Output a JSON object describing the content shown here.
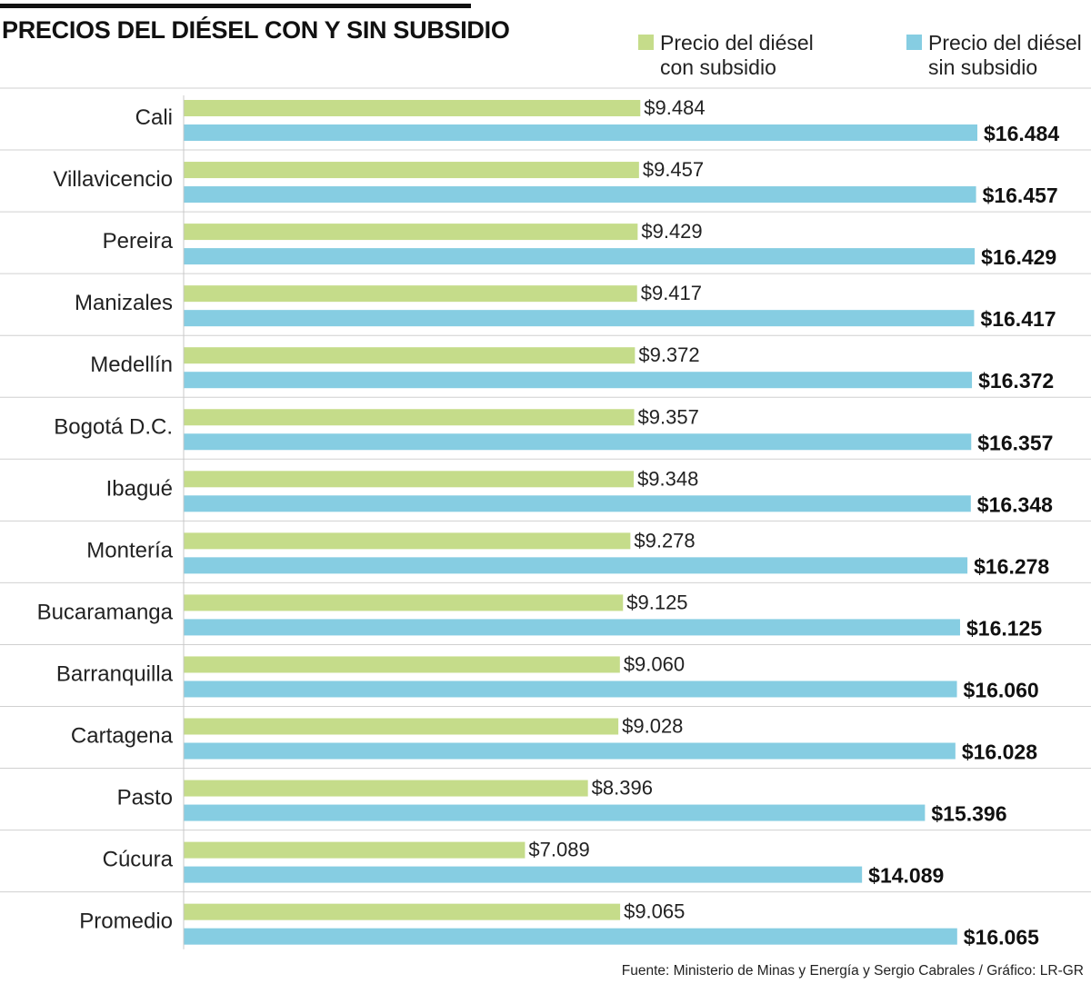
{
  "title": "PRECIOS DEL DIÉSEL CON Y SIN SUBSIDIO",
  "source": "Fuente: Ministerio de Minas y Energía y Sergio Cabrales / Gráfico: LR-GR",
  "colors": {
    "with_subsidy": "#c5dc8a",
    "without_subsidy": "#86cde2",
    "divider": "#d0d0d0"
  },
  "legend": {
    "with_subsidy_line1": "Precio del diésel",
    "with_subsidy_line2": "con subsidio",
    "without_subsidy_line1": "Precio del diésel",
    "without_subsidy_line2": "sin subsidio"
  },
  "chart_data": {
    "type": "bar",
    "orientation": "horizontal",
    "title": "PRECIOS DEL DIÉSEL CON Y SIN SUBSIDIO",
    "categories": [
      "Cali",
      "Villavicencio",
      "Pereira",
      "Manizales",
      "Medellín",
      "Bogotá D.C.",
      "Ibagué",
      "Montería",
      "Bucaramanga",
      "Barranquilla",
      "Cartagena",
      "Pasto",
      "Cúcura",
      "Promedio"
    ],
    "series": [
      {
        "name": "Precio del diésel con subsidio",
        "values": [
          9484,
          9457,
          9429,
          9417,
          9372,
          9357,
          9348,
          9278,
          9125,
          9060,
          9028,
          8396,
          7089,
          9065
        ],
        "labels": [
          "$9.484",
          "$9.457",
          "$9.429",
          "$9.417",
          "$9.372",
          "$9.357",
          "$9.348",
          "$9.278",
          "$9.125",
          "$9.060",
          "$9.028",
          "$8.396",
          "$7.089",
          "$9.065"
        ]
      },
      {
        "name": "Precio del diésel sin subsidio",
        "values": [
          16484,
          16457,
          16429,
          16417,
          16372,
          16357,
          16348,
          16278,
          16125,
          16060,
          16028,
          15396,
          14089,
          16065
        ],
        "labels": [
          "$16.484",
          "$16.457",
          "$16.429",
          "$16.417",
          "$16.372",
          "$16.357",
          "$16.348",
          "$16.278",
          "$16.125",
          "$16.060",
          "$16.028",
          "$15.396",
          "$14.089",
          "$16.065"
        ]
      }
    ],
    "xlim": [
      0,
      16484
    ],
    "xlabel": "",
    "ylabel": "",
    "grid": false,
    "legend_position": "top-right"
  }
}
